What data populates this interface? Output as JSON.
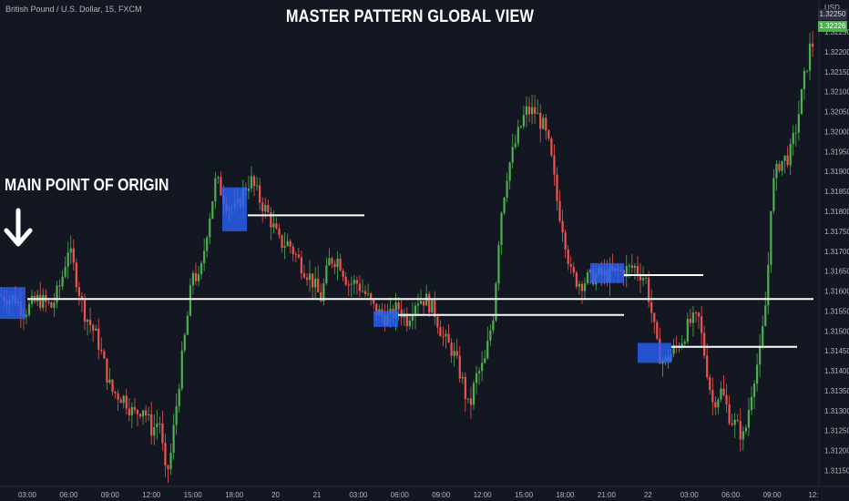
{
  "header": {
    "symbol": "British Pound / U.S. Dollar, 15, FXCM",
    "title": "MASTER PATTERN GLOBAL VIEW",
    "annotation": "MAIN POINT OF ORIGIN"
  },
  "axis": {
    "currency": "USD",
    "last_price_top": "1.32250",
    "last_price": "1.32226"
  },
  "colors": {
    "background": "#131722",
    "bull": "#4caf50",
    "bear": "#ef5350",
    "zone": "#2962ff",
    "line": "#ffffff",
    "axis_text": "#b2b5be"
  },
  "chart_data": {
    "type": "candlestick",
    "title": "MASTER PATTERN GLOBAL VIEW",
    "x_ticks": [
      "03:00",
      "06:00",
      "09:00",
      "12:00",
      "15:00",
      "18:00",
      "20",
      "21",
      "03:00",
      "06:00",
      "09:00",
      "12:00",
      "15:00",
      "18:00",
      "21:00",
      "22",
      "03:00",
      "06:00",
      "09:00",
      "12:"
    ],
    "y_ticks": [
      1.3225,
      1.322,
      1.3215,
      1.321,
      1.3205,
      1.32,
      1.3195,
      1.319,
      1.3185,
      1.318,
      1.3175,
      1.317,
      1.3165,
      1.316,
      1.3155,
      1.315,
      1.3145,
      1.314,
      1.3135,
      1.313,
      1.3125,
      1.312,
      1.3115
    ],
    "ylim": [
      1.3111,
      1.3233
    ],
    "last_price": 1.32226,
    "path": [
      [
        0,
        1.3159
      ],
      [
        20,
        1.3158
      ],
      [
        30,
        1.3155
      ],
      [
        45,
        1.3158
      ],
      [
        60,
        1.3156
      ],
      [
        70,
        1.3162
      ],
      [
        78,
        1.3171
      ],
      [
        85,
        1.3165
      ],
      [
        95,
        1.3155
      ],
      [
        110,
        1.3148
      ],
      [
        125,
        1.3135
      ],
      [
        140,
        1.3133
      ],
      [
        150,
        1.3129
      ],
      [
        160,
        1.3131
      ],
      [
        170,
        1.3125
      ],
      [
        178,
        1.3128
      ],
      [
        185,
        1.3113
      ],
      [
        190,
        1.3118
      ],
      [
        200,
        1.3138
      ],
      [
        208,
        1.3152
      ],
      [
        215,
        1.3165
      ],
      [
        222,
        1.3162
      ],
      [
        230,
        1.3175
      ],
      [
        240,
        1.3188
      ],
      [
        252,
        1.3182
      ],
      [
        262,
        1.318
      ],
      [
        270,
        1.3185
      ],
      [
        278,
        1.3188
      ],
      [
        288,
        1.3183
      ],
      [
        298,
        1.3179
      ],
      [
        310,
        1.3172
      ],
      [
        320,
        1.3172
      ],
      [
        330,
        1.3168
      ],
      [
        345,
        1.3163
      ],
      [
        355,
        1.3158
      ],
      [
        365,
        1.3168
      ],
      [
        375,
        1.3168
      ],
      [
        385,
        1.3162
      ],
      [
        395,
        1.3162
      ],
      [
        405,
        1.3159
      ],
      [
        415,
        1.3155
      ],
      [
        430,
        1.3153
      ],
      [
        440,
        1.3156
      ],
      [
        450,
        1.3153
      ],
      [
        460,
        1.3158
      ],
      [
        470,
        1.3158
      ],
      [
        480,
        1.3155
      ],
      [
        490,
        1.3148
      ],
      [
        500,
        1.3145
      ],
      [
        510,
        1.3138
      ],
      [
        518,
        1.313
      ],
      [
        525,
        1.3138
      ],
      [
        535,
        1.3142
      ],
      [
        545,
        1.3155
      ],
      [
        552,
        1.3178
      ],
      [
        560,
        1.319
      ],
      [
        570,
        1.3198
      ],
      [
        580,
        1.3205
      ],
      [
        590,
        1.3205
      ],
      [
        600,
        1.3201
      ],
      [
        607,
        1.3195
      ],
      [
        615,
        1.3182
      ],
      [
        622,
        1.3175
      ],
      [
        630,
        1.3164
      ],
      [
        640,
        1.3162
      ],
      [
        648,
        1.3163
      ],
      [
        658,
        1.3164
      ],
      [
        670,
        1.3164
      ],
      [
        685,
        1.3165
      ],
      [
        700,
        1.3166
      ],
      [
        712,
        1.3163
      ],
      [
        718,
        1.3155
      ],
      [
        725,
        1.3145
      ],
      [
        732,
        1.3142
      ],
      [
        742,
        1.3145
      ],
      [
        752,
        1.3148
      ],
      [
        760,
        1.3152
      ],
      [
        770,
        1.3153
      ],
      [
        778,
        1.3142
      ],
      [
        785,
        1.3132
      ],
      [
        795,
        1.3135
      ],
      [
        805,
        1.3128
      ],
      [
        812,
        1.3126
      ],
      [
        820,
        1.3123
      ],
      [
        830,
        1.3138
      ],
      [
        838,
        1.3145
      ],
      [
        845,
        1.316
      ],
      [
        850,
        1.3185
      ],
      [
        858,
        1.3192
      ],
      [
        870,
        1.3194
      ],
      [
        878,
        1.3202
      ],
      [
        885,
        1.3212
      ],
      [
        893,
        1.3222
      ]
    ],
    "zones": [
      {
        "x": [
          0,
          28
        ],
        "y": [
          1.3161,
          1.3153
        ]
      },
      {
        "x": [
          244,
          271
        ],
        "y": [
          1.3186,
          1.3175
        ]
      },
      {
        "x": [
          410,
          437
        ],
        "y": [
          1.3155,
          1.3151
        ]
      },
      {
        "x": [
          648,
          685
        ],
        "y": [
          1.3167,
          1.3162
        ]
      },
      {
        "x": [
          700,
          737
        ],
        "y": [
          1.3147,
          1.3142
        ]
      }
    ],
    "lines": [
      {
        "x": [
          30,
          893
        ],
        "y": 1.3158
      },
      {
        "x": [
          272,
          400
        ],
        "y": 1.3179
      },
      {
        "x": [
          437,
          685
        ],
        "y": 1.3154
      },
      {
        "x": [
          685,
          772
        ],
        "y": 1.3164
      },
      {
        "x": [
          737,
          875
        ],
        "y": 1.3146
      }
    ]
  }
}
